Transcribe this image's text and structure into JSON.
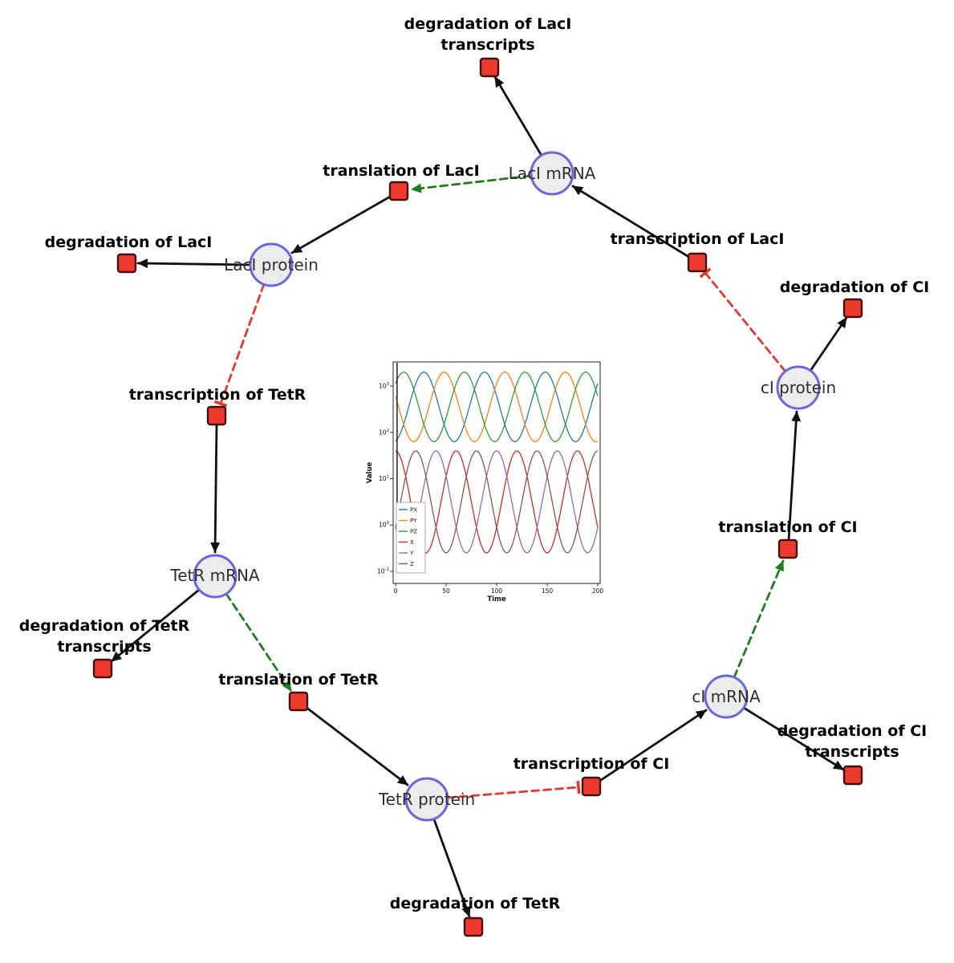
{
  "species": {
    "laci_mrna": {
      "label": "LacI mRNA"
    },
    "laci_protein": {
      "label": "LacI protein"
    },
    "tetr_mrna": {
      "label": "TetR mRNA"
    },
    "tetr_protein": {
      "label": "TetR protein"
    },
    "ci_mrna": {
      "label": "cI mRNA"
    },
    "ci_protein": {
      "label": "cI protein"
    }
  },
  "reactions": {
    "deg_laci_tx": {
      "line1": "degradation of LacI",
      "line2": "transcripts"
    },
    "transl_laci": {
      "label": "translation of LacI"
    },
    "txn_laci": {
      "label": "transcription of LacI"
    },
    "deg_laci": {
      "label": "degradation of LacI"
    },
    "deg_ci": {
      "label": "degradation of CI"
    },
    "txn_tetr": {
      "label": "transcription of TetR"
    },
    "transl_ci": {
      "label": "translation of CI"
    },
    "deg_tetr_tx": {
      "line1": "degradation of TetR",
      "line2": "transcripts"
    },
    "transl_tetr": {
      "label": "translation of TetR"
    },
    "deg_ci_tx": {
      "line1": "degradation of CI",
      "line2": "transcripts"
    },
    "txn_ci": {
      "label": "transcription of CI"
    },
    "deg_tetr": {
      "label": "degradation of TetR"
    }
  },
  "colors": {
    "species_fill": "#ececec",
    "species_stroke": "#6a66dd",
    "reaction_fill": "#ee3a2e",
    "reaction_stroke": "#42110c",
    "edge_black": "#111111",
    "activation_green": "#1e7d1e",
    "inhibition_red": "#e8362e"
  },
  "chart_data": {
    "type": "line",
    "title": "",
    "xlabel": "Time",
    "ylabel": "Value",
    "x_range": [
      0,
      200
    ],
    "x_ticks": [
      0,
      50,
      100,
      150,
      200
    ],
    "y_scale": "log",
    "y_tick_exponents": [
      -1,
      0,
      1,
      2,
      3
    ],
    "y_log_range": [
      -1.26,
      3.52
    ],
    "grid": false,
    "legend_position": "lower left",
    "initial_transient_x": 1.5,
    "series": [
      {
        "name": "PX",
        "color": "#1f77b4",
        "log_center": 2.55,
        "log_amp": 0.75,
        "period": 60,
        "t_peak": 28
      },
      {
        "name": "PY",
        "color": "#ff7f0e",
        "log_center": 2.55,
        "log_amp": 0.75,
        "period": 60,
        "t_peak": 48
      },
      {
        "name": "PZ",
        "color": "#2ca02c",
        "log_center": 2.55,
        "log_amp": 0.75,
        "period": 60,
        "t_peak": 68
      },
      {
        "name": "X",
        "color": "#d62728",
        "log_center": 0.5,
        "log_amp": 1.1,
        "period": 60,
        "t_peak": 60
      },
      {
        "name": "Y",
        "color": "#9467bd",
        "log_center": 0.5,
        "log_amp": 1.1,
        "period": 60,
        "t_peak": 40
      },
      {
        "name": "Z",
        "color": "#8c564b",
        "log_center": 0.5,
        "log_amp": 1.1,
        "period": 60,
        "t_peak": 80
      }
    ]
  }
}
